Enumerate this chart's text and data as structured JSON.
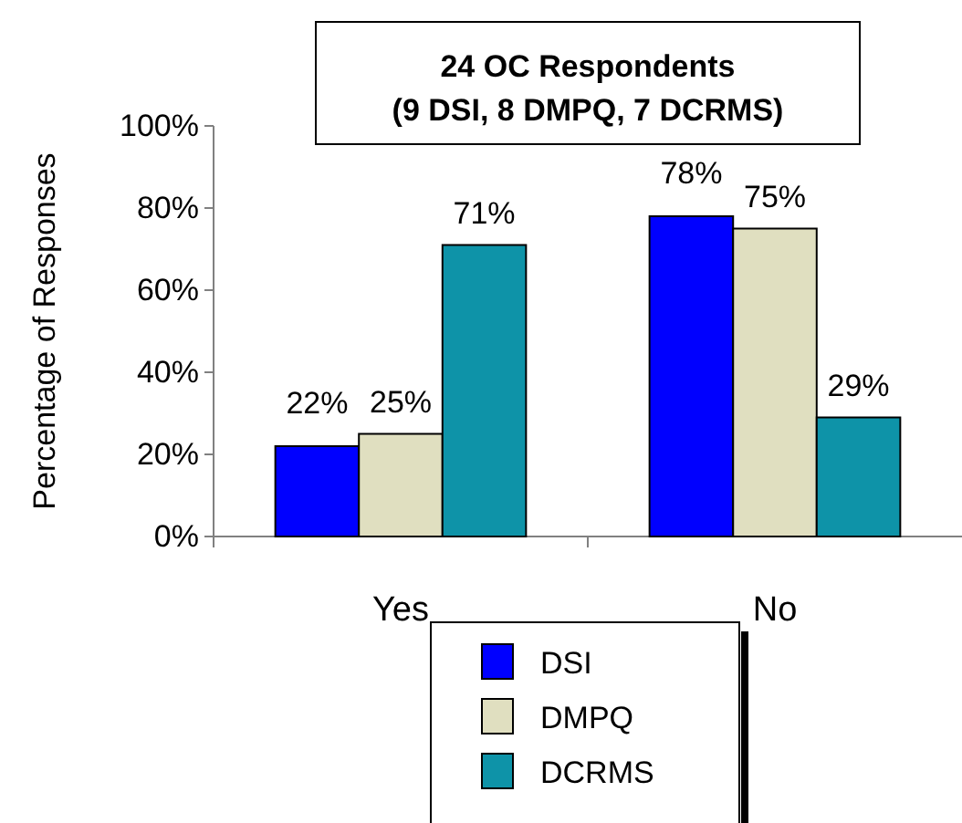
{
  "chart_data": {
    "type": "bar",
    "title": "24 OC Respondents",
    "subtitle": "(9 DSI, 8 DMPQ, 7 DCRMS)",
    "ylabel": "Percentage of Responses",
    "categories": [
      "Yes",
      "No"
    ],
    "series": [
      {
        "name": "DSI",
        "color": "#0000ff",
        "values": [
          22,
          78
        ],
        "value_labels": [
          "22%",
          "78%"
        ]
      },
      {
        "name": "DMPQ",
        "color": "#e0dfc0",
        "values": [
          25,
          75
        ],
        "value_labels": [
          "25%",
          "75%"
        ]
      },
      {
        "name": "DCRMS",
        "color": "#0e93a8",
        "values": [
          71,
          29
        ],
        "value_labels": [
          "71%",
          "29%"
        ]
      }
    ],
    "ylim": [
      0,
      100
    ],
    "yticks": [
      {
        "value": 0,
        "label": "0%"
      },
      {
        "value": 20,
        "label": "20%"
      },
      {
        "value": 40,
        "label": "40%"
      },
      {
        "value": 60,
        "label": "60%"
      },
      {
        "value": 80,
        "label": "80%"
      },
      {
        "value": 100,
        "label": "100%"
      }
    ],
    "grid": false,
    "legend": "bottom"
  }
}
